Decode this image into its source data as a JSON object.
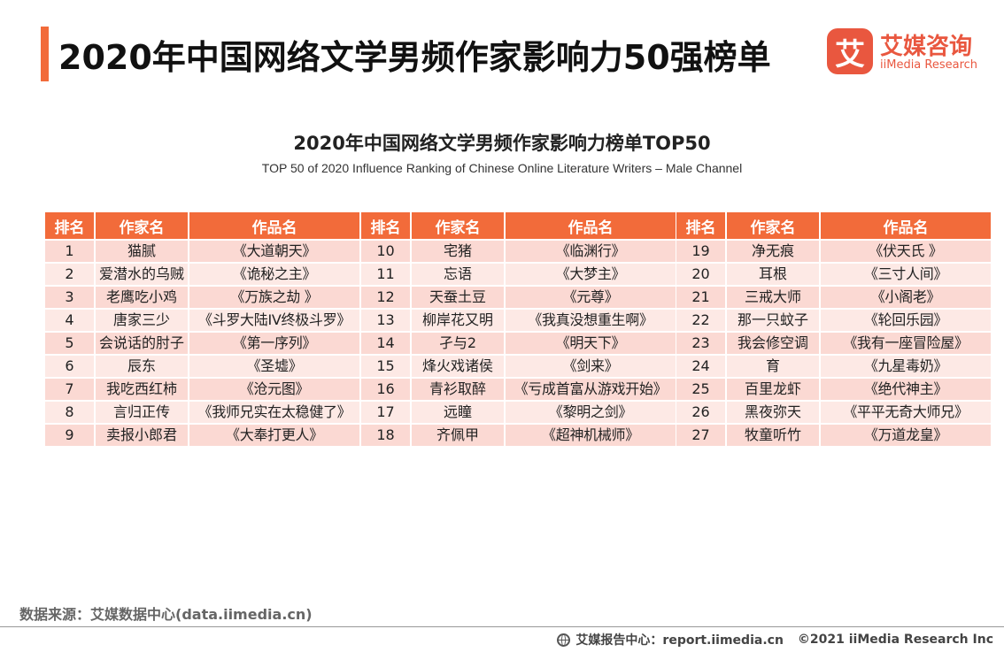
{
  "header": {
    "title": "2020年中国网络文学男频作家影响力50强榜单"
  },
  "logo": {
    "mark": "艾",
    "name_cn": "艾媒咨询",
    "name_en": "iiMedia Research"
  },
  "chart": {
    "title": "2020年中国网络文学男频作家影响力榜单TOP50",
    "subtitle": "TOP 50 of 2020 Influence Ranking of Chinese Online Literature Writers – Male Channel"
  },
  "table_headers": {
    "rank": "排名",
    "author": "作家名",
    "work": "作品名"
  },
  "tables": [
    {
      "rows": [
        {
          "rank": "1",
          "author": "猫腻",
          "work": "《大道朝天》"
        },
        {
          "rank": "2",
          "author": "爱潜水的乌贼",
          "work": "《诡秘之主》"
        },
        {
          "rank": "3",
          "author": "老鹰吃小鸡",
          "work": "《万族之劫 》"
        },
        {
          "rank": "4",
          "author": "唐家三少",
          "work": "《斗罗大陆IV终极斗罗》"
        },
        {
          "rank": "5",
          "author": "会说话的肘子",
          "work": "《第一序列》"
        },
        {
          "rank": "6",
          "author": "辰东",
          "work": "《圣墟》"
        },
        {
          "rank": "7",
          "author": "我吃西红柿",
          "work": "《沧元图》"
        },
        {
          "rank": "8",
          "author": "言归正传",
          "work": "《我师兄实在太稳健了》"
        },
        {
          "rank": "9",
          "author": "卖报小郎君",
          "work": "《大奉打更人》"
        }
      ]
    },
    {
      "rows": [
        {
          "rank": "10",
          "author": "宅猪",
          "work": "《临渊行》"
        },
        {
          "rank": "11",
          "author": "忘语",
          "work": "《大梦主》"
        },
        {
          "rank": "12",
          "author": "天蚕土豆",
          "work": "《元尊》"
        },
        {
          "rank": "13",
          "author": "柳岸花又明",
          "work": "《我真没想重生啊》"
        },
        {
          "rank": "14",
          "author": "孑与2",
          "work": "《明天下》"
        },
        {
          "rank": "15",
          "author": "烽火戏诸侯",
          "work": "《剑来》"
        },
        {
          "rank": "16",
          "author": "青衫取醉",
          "work": "《亏成首富从游戏开始》"
        },
        {
          "rank": "17",
          "author": "远瞳",
          "work": "《黎明之剑》"
        },
        {
          "rank": "18",
          "author": "齐佩甲",
          "work": "《超神机械师》"
        }
      ]
    },
    {
      "rows": [
        {
          "rank": "19",
          "author": "净无痕",
          "work": "《伏天氏 》"
        },
        {
          "rank": "20",
          "author": "耳根",
          "work": "《三寸人间》"
        },
        {
          "rank": "21",
          "author": "三戒大师",
          "work": "《小阁老》"
        },
        {
          "rank": "22",
          "author": "那一只蚊子",
          "work": "《轮回乐园》"
        },
        {
          "rank": "23",
          "author": "我会修空调",
          "work": "《我有一座冒险屋》"
        },
        {
          "rank": "24",
          "author": "育",
          "work": "《九星毒奶》"
        },
        {
          "rank": "25",
          "author": "百里龙虾",
          "work": "《绝代神主》"
        },
        {
          "rank": "26",
          "author": "黑夜弥天",
          "work": "《平平无奇大师兄》"
        },
        {
          "rank": "27",
          "author": "牧童听竹",
          "work": "《万道龙皇》"
        }
      ]
    }
  ],
  "source": "数据来源：艾媒数据中心(data.iimedia.cn)",
  "footer": {
    "icon": "globe-icon",
    "report": "艾媒报告中心：report.iimedia.cn",
    "copyright": "©2021  iiMedia Research  Inc"
  }
}
